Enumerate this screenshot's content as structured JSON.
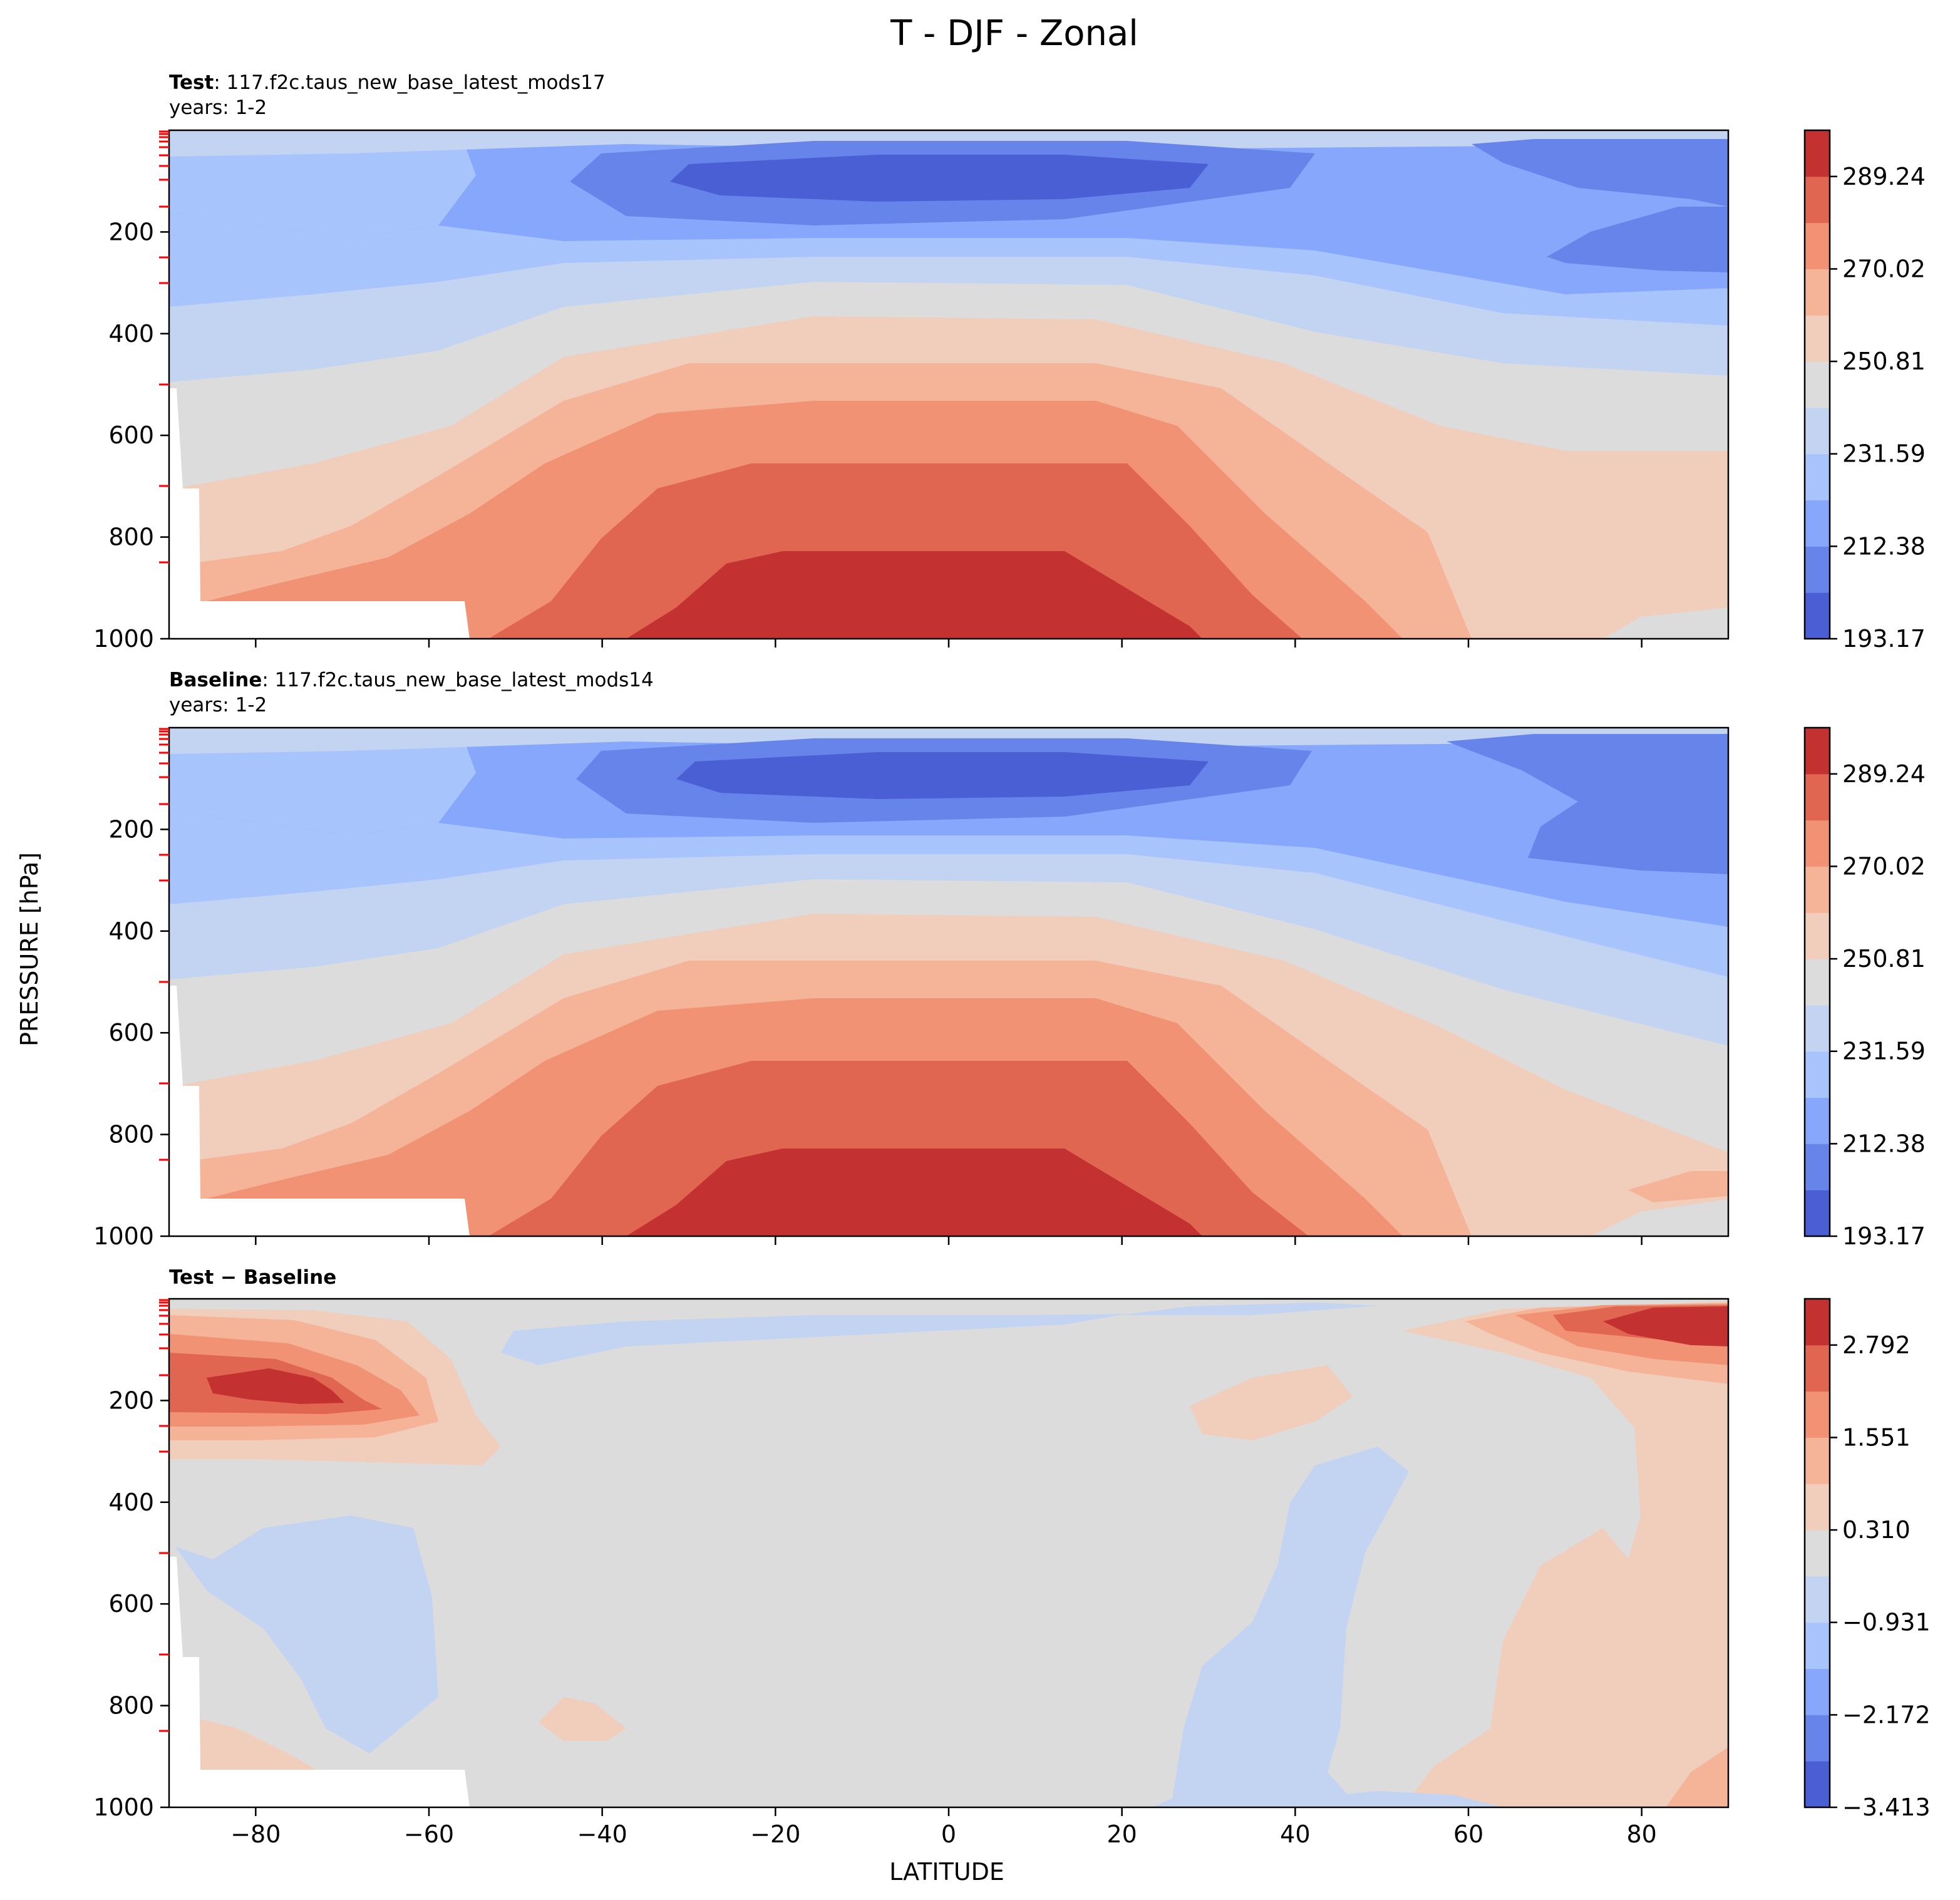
{
  "chart_data": {
    "type": "contour",
    "title": "T - DJF - Zonal",
    "ylabel": "PRESSURE [hPa]",
    "xlabel": "LATITUDE",
    "xlim": [
      -90,
      90
    ],
    "ylim": [
      1000,
      0
    ],
    "x_ticks": [
      -80,
      -60,
      -40,
      -20,
      0,
      20,
      40,
      60,
      80
    ],
    "x_tick_labels": [
      "−80",
      "−60",
      "−40",
      "−20",
      "0",
      "20",
      "40",
      "60",
      "80"
    ],
    "y_ticks": [
      200,
      400,
      600,
      800,
      1000
    ],
    "y_tick_labels": [
      "200",
      "400",
      "600",
      "800",
      "1000"
    ],
    "colors": {
      "coolwarm": [
        "#4a5fd4",
        "#6684e9",
        "#86a7fb",
        "#a8c4fc",
        "#c3d4f2",
        "#dcdcdc",
        "#f1cdbb",
        "#f5b398",
        "#f19274",
        "#e06652",
        "#c33230"
      ],
      "marker_red": "#ff0000",
      "frame": "#000000"
    },
    "panels": [
      {
        "name": "test",
        "title_bold": "Test",
        "title_text": ": 117.f2c.taus_new_base_latest_mods17",
        "subtitle": "years: 1-2",
        "colorbar_labels": [
          "289.24",
          "270.02",
          "250.81",
          "231.59",
          "212.38",
          "193.17"
        ]
      },
      {
        "name": "baseline",
        "title_bold": "Baseline",
        "title_text": ": 117.f2c.taus_new_base_latest_mods14",
        "subtitle": "years: 1-2",
        "colorbar_labels": [
          "289.24",
          "270.02",
          "250.81",
          "231.59",
          "212.38",
          "193.17"
        ]
      },
      {
        "name": "difference",
        "title_bold": "Test − Baseline",
        "title_text": "",
        "subtitle": "",
        "colorbar_labels": [
          "2.792",
          "1.551",
          "0.310",
          "−0.931",
          "−2.172",
          "−3.413"
        ]
      }
    ]
  }
}
